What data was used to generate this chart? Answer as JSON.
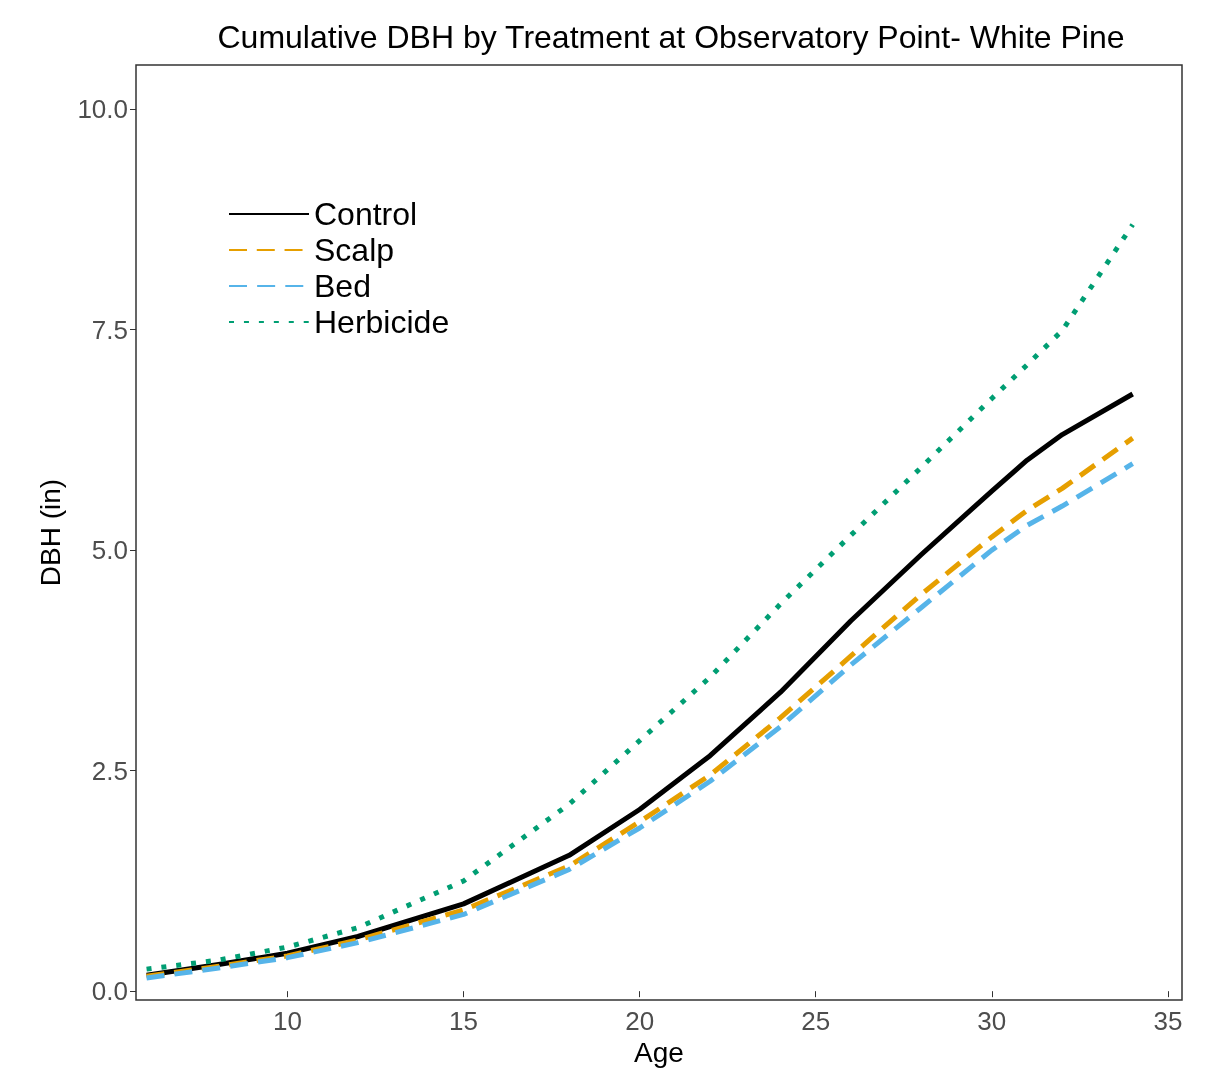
{
  "chart_data": {
    "type": "line",
    "title": "Cumulative DBH by Treatment at Observatory Point- White Pine",
    "xlabel": "Age",
    "ylabel": "DBH (in)",
    "x": [
      6,
      8,
      10,
      12,
      15,
      18,
      20,
      22,
      24,
      26,
      28,
      30,
      31,
      32,
      34
    ],
    "series": [
      {
        "name": "Control",
        "color": "#000000",
        "line_style": "solid",
        "values": [
          0.18,
          0.3,
          0.43,
          0.62,
          0.99,
          1.54,
          2.06,
          2.67,
          3.39,
          4.2,
          4.95,
          5.67,
          6.02,
          6.31,
          6.77
        ]
      },
      {
        "name": "Scalp",
        "color": "#e69f00",
        "line_style": "dashed",
        "values": [
          0.17,
          0.28,
          0.4,
          0.58,
          0.92,
          1.42,
          1.92,
          2.45,
          3.1,
          3.8,
          4.5,
          5.15,
          5.45,
          5.7,
          6.27
        ]
      },
      {
        "name": "Bed",
        "color": "#56b4e9",
        "line_style": "dashed",
        "values": [
          0.15,
          0.26,
          0.38,
          0.55,
          0.87,
          1.38,
          1.85,
          2.38,
          3.0,
          3.7,
          4.35,
          5.0,
          5.28,
          5.5,
          5.98
        ]
      },
      {
        "name": "Herbicide",
        "color": "#009e73",
        "line_style": "dotted",
        "values": [
          0.25,
          0.35,
          0.5,
          0.72,
          1.25,
          2.12,
          2.84,
          3.56,
          4.39,
          5.17,
          5.94,
          6.72,
          7.1,
          7.49,
          8.69
        ]
      }
    ],
    "xlim": [
      5.7,
      35.4
    ],
    "ylim": [
      -0.1,
      10.5
    ],
    "xticks": [
      10,
      15,
      20,
      25,
      30,
      35
    ],
    "yticks": [
      {
        "value": 0,
        "label": "0.0"
      },
      {
        "value": 2.5,
        "label": "2.5"
      },
      {
        "value": 5,
        "label": "5.0"
      },
      {
        "value": 7.5,
        "label": "7.5"
      },
      {
        "value": 10,
        "label": "10.0"
      }
    ],
    "grid": false,
    "legend": "top left",
    "marker": "none"
  }
}
